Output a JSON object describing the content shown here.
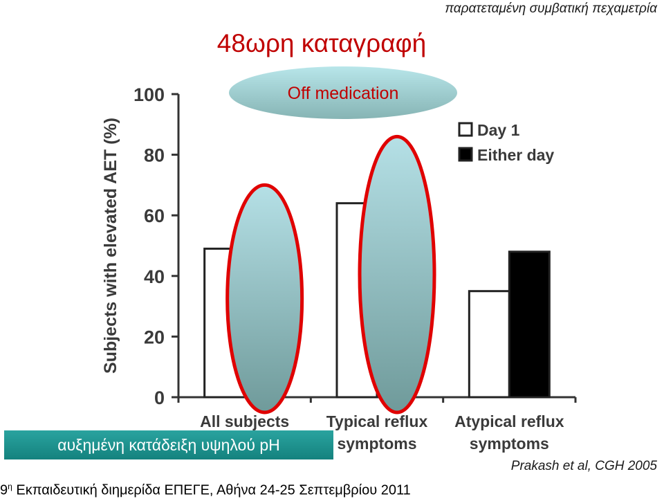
{
  "slide": {
    "top_note": "παρατεταμένη συμβατική πεχαμετρία",
    "title": "48ωρη καταγραφή",
    "highlight_label": "αυξημένη κατάδειξη υψηλού pH",
    "citation": "Prakash et al, CGH 2005",
    "footer_sup": "η",
    "footer_num": "9",
    "footer_text": "Εκπαιδευτική διημερίδα ΕΠΕΓΕ, Αθήνα 24-25 Σεπτεμβρίου 2011"
  },
  "chart_data": {
    "type": "bar",
    "ylabel": "Subjects with elevated AET (%)",
    "ylim": [
      0,
      100
    ],
    "yticks": [
      0,
      20,
      40,
      60,
      80,
      100
    ],
    "categories": [
      [
        "All subjects"
      ],
      [
        "Typical reflux",
        "symptoms"
      ],
      [
        "Atypical reflux",
        "symptoms"
      ]
    ],
    "series": [
      {
        "name": "Day 1",
        "color": "#ffffff",
        "values": [
          49,
          64,
          35
        ]
      },
      {
        "name": "Either day",
        "color": "#000000",
        "values": [
          70,
          86,
          48
        ]
      }
    ],
    "legend_position": "top-right",
    "annotation": "Off medication",
    "highlight_color": "#e00000"
  }
}
